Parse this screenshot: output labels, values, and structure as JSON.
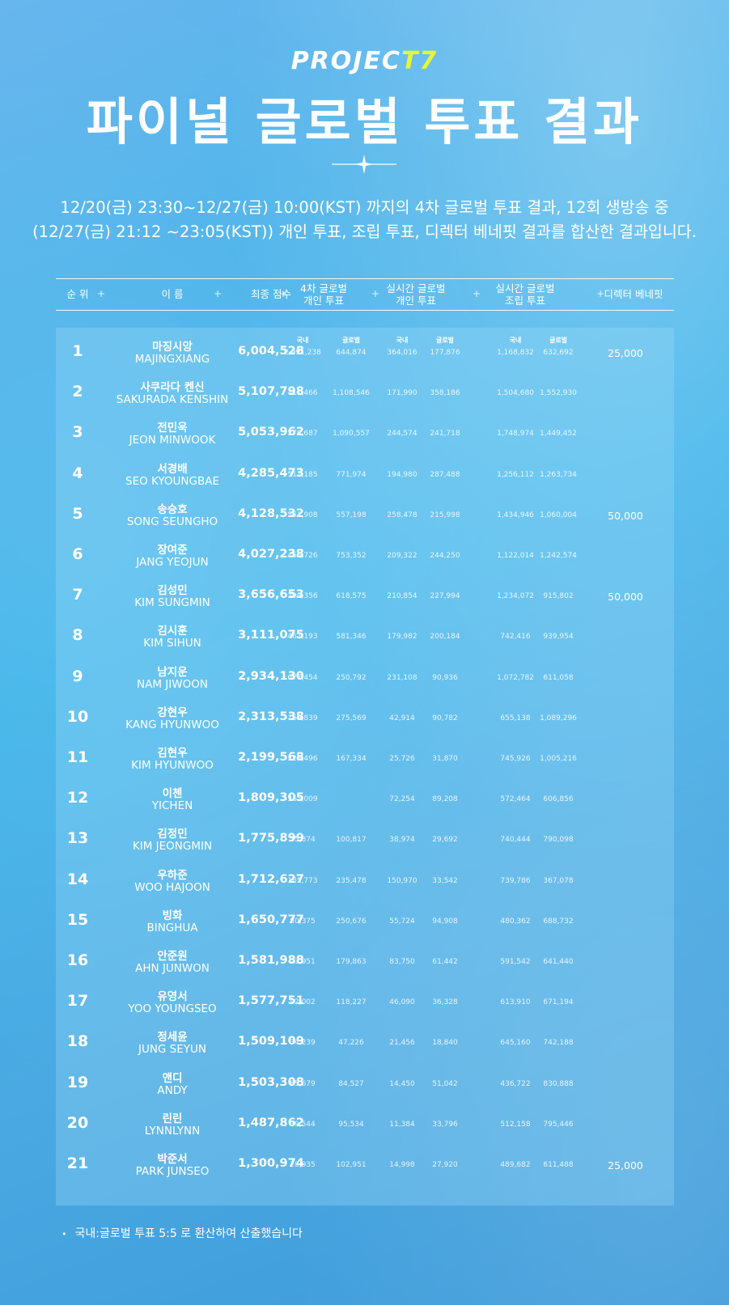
{
  "logo": {
    "text_main": "PROJEC",
    "text_accent": "T7"
  },
  "title": "파이널 글로벌 투표 결과",
  "subtitle": {
    "line1": "12/20(금) 23:30~12/27(금) 10:00(KST) 까지의 4차 글로벌 투표 결과, 12회 생방송 중",
    "line2": "(12/27(금) 21:12 ~23:05(KST)) 개인 투표, 조립 투표, 디렉터 베네핏 결과를 합산한 결과입니다."
  },
  "header": {
    "rank": "순 위",
    "name": "이 름",
    "total": "최종 점수",
    "global4_l1": "4차 글로벌",
    "global4_l2": "개인 투표",
    "live_indiv_l1": "실시간 글로벌",
    "live_indiv_l2": "개인 투표",
    "live_group_l1": "실시간 글로벌",
    "live_group_l2": "조립 투표",
    "bonus": "디렉터 베네핏",
    "plus": "+"
  },
  "subheader": {
    "domestic": "국내",
    "global": "글로벌"
  },
  "rows": [
    {
      "rank": "1",
      "kname": "마징시앙",
      "ename": "MAJINGXIANG",
      "total": "6,004,528",
      "v": [
        "2,991,238",
        "644,874",
        "364,016",
        "177,876",
        "1,168,832",
        "632,692"
      ],
      "bonus": "25,000"
    },
    {
      "rank": "2",
      "kname": "사쿠라다 켄신",
      "ename": "SAKURADA KENSHIN",
      "total": "5,107,798",
      "v": [
        "411,466",
        "1,108,546",
        "171,990",
        "358,186",
        "1,504,680",
        "1,552,930"
      ],
      "bonus": ""
    },
    {
      "rank": "3",
      "kname": "전민욱",
      "ename": "JEON MINWOOK",
      "total": "5,053,962",
      "v": [
        "278,687",
        "1,090,557",
        "244,574",
        "241,718",
        "1,748,974",
        "1,449,452"
      ],
      "bonus": ""
    },
    {
      "rank": "4",
      "kname": "서경배",
      "ename": "SEO KYOUNGBAE",
      "total": "4,285,473",
      "v": [
        "511,185",
        "771,974",
        "194,980",
        "287,488",
        "1,256,112",
        "1,263,734"
      ],
      "bonus": ""
    },
    {
      "rank": "5",
      "kname": "송승호",
      "ename": "SONG SEUNGHO",
      "total": "4,128,532",
      "v": [
        "551,908",
        "557,198",
        "258,478",
        "215,998",
        "1,434,946",
        "1,060,004"
      ],
      "bonus": "50,000"
    },
    {
      "rank": "6",
      "kname": "장여준",
      "ename": "JANG YEOJUN",
      "total": "4,027,238",
      "v": [
        "455,726",
        "753,352",
        "209,322",
        "244,250",
        "1,122,014",
        "1,242,574"
      ],
      "bonus": ""
    },
    {
      "rank": "7",
      "kname": "김성민",
      "ename": "KIM SUNGMIN",
      "total": "3,656,653",
      "v": [
        "399,356",
        "618,575",
        "210,854",
        "227,994",
        "1,234,072",
        "915,802"
      ],
      "bonus": "50,000"
    },
    {
      "rank": "8",
      "kname": "김시훈",
      "ename": "KIM SIHUN",
      "total": "3,111,075",
      "v": [
        "467,193",
        "581,346",
        "179,982",
        "200,184",
        "742,416",
        "939,954"
      ],
      "bonus": ""
    },
    {
      "rank": "9",
      "kname": "남지운",
      "ename": "NAM JIWOON",
      "total": "2,934,130",
      "v": [
        "677,454",
        "250,792",
        "231,108",
        "90,936",
        "1,072,782",
        "611,058"
      ],
      "bonus": ""
    },
    {
      "rank": "10",
      "kname": "강현우",
      "ename": "KANG HYUNWOO",
      "total": "2,313,538",
      "v": [
        "159,839",
        "275,569",
        "42,914",
        "90,782",
        "655,138",
        "1,089,296"
      ],
      "bonus": ""
    },
    {
      "rank": "11",
      "kname": "김현우",
      "ename": "KIM HYUNWOO",
      "total": "2,199,568",
      "v": [
        "223,496",
        "167,334",
        "25,726",
        "31,870",
        "745,926",
        "1,005,216"
      ],
      "bonus": ""
    },
    {
      "rank": "12",
      "kname": "이첸",
      "ename": "YICHEN",
      "total": "1,809,305",
      "v": [
        "365,009",
        "",
        "72,254",
        "89,208",
        "572,464",
        "606,856"
      ],
      "bonus": ""
    },
    {
      "rank": "13",
      "kname": "김정민",
      "ename": "KIM JEONGMIN",
      "total": "1,775,899",
      "v": [
        "75,874",
        "100,817",
        "38,974",
        "29,692",
        "740,444",
        "790,098"
      ],
      "bonus": ""
    },
    {
      "rank": "14",
      "kname": "우하준",
      "ename": "WOO HAJOON",
      "total": "1,712,627",
      "v": [
        "185,773",
        "235,478",
        "150,970",
        "33,542",
        "739,786",
        "367,078"
      ],
      "bonus": ""
    },
    {
      "rank": "15",
      "kname": "빙화",
      "ename": "BINGHUA",
      "total": "1,650,777",
      "v": [
        "80,375",
        "250,676",
        "55,724",
        "94,908",
        "480,362",
        "688,732"
      ],
      "bonus": ""
    },
    {
      "rank": "16",
      "kname": "안준원",
      "ename": "AHN JUNWON",
      "total": "1,581,988",
      "v": [
        "23,951",
        "179,863",
        "83,750",
        "61,442",
        "591,542",
        "641,440"
      ],
      "bonus": ""
    },
    {
      "rank": "17",
      "kname": "유영서",
      "ename": "YOO YOUNGSEO",
      "total": "1,577,751",
      "v": [
        "92,002",
        "118,227",
        "46,090",
        "36,328",
        "613,910",
        "671,194"
      ],
      "bonus": ""
    },
    {
      "rank": "18",
      "kname": "정세윤",
      "ename": "JUNG SEYUN",
      "total": "1,509,109",
      "v": [
        "34,239",
        "47,226",
        "21,456",
        "18,840",
        "645,160",
        "742,188"
      ],
      "bonus": ""
    },
    {
      "rank": "19",
      "kname": "앤디",
      "ename": "ANDY",
      "total": "1,503,308",
      "v": [
        "85,679",
        "84,527",
        "14,450",
        "51,042",
        "436,722",
        "830,888"
      ],
      "bonus": ""
    },
    {
      "rank": "20",
      "kname": "린린",
      "ename": "LYNNLYNN",
      "total": "1,487,862",
      "v": [
        "39,544",
        "95,534",
        "11,384",
        "33,796",
        "512,158",
        "795,446"
      ],
      "bonus": ""
    },
    {
      "rank": "21",
      "kname": "박준서",
      "ename": "PARK JUNSEO",
      "total": "1,300,974",
      "v": [
        "28,935",
        "102,951",
        "14,998",
        "27,920",
        "489,682",
        "611,488"
      ],
      "bonus": "25,000"
    }
  ],
  "footnote": "국내:글로벌 투표 5:5 로 환산하여 산출했습니다",
  "footnote_bullet": "•"
}
